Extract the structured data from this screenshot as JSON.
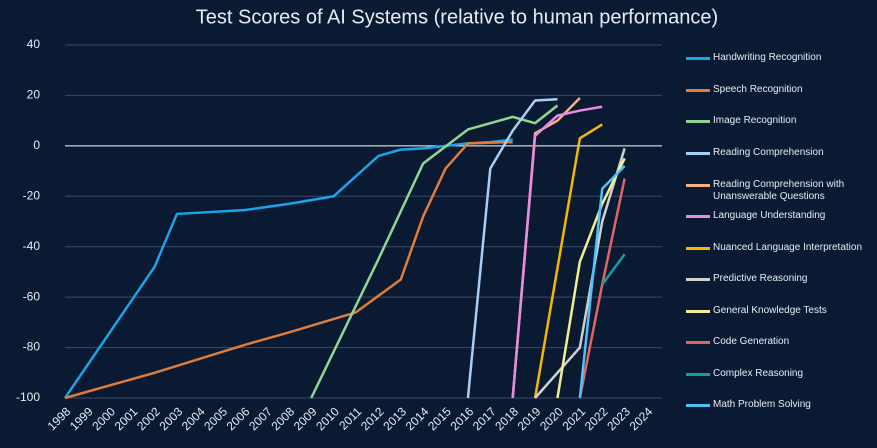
{
  "chart_data": {
    "type": "line",
    "title": "Test Scores of AI Systems (relative to human performance)",
    "xlim": [
      1998,
      2024
    ],
    "xticks": [
      1998,
      1999,
      2000,
      2001,
      2002,
      2003,
      2004,
      2005,
      2006,
      2007,
      2008,
      2009,
      2010,
      2011,
      2012,
      2013,
      2014,
      2015,
      2016,
      2017,
      2018,
      2019,
      2020,
      2021,
      2022,
      2023,
      2024
    ],
    "ylim": [
      -100,
      40
    ],
    "yticks": [
      -100,
      -80,
      -60,
      -40,
      -20,
      0,
      20,
      40
    ],
    "grid": true,
    "series": [
      {
        "name": "Handwriting Recognition",
        "color": "#1aa3e8",
        "x": [
          1998,
          2002,
          2003,
          2006,
          2008,
          2010,
          2012,
          2013,
          2014,
          2015,
          2016,
          2017,
          2018
        ],
        "values": [
          -100,
          -48,
          -27,
          -25.5,
          -23,
          -20,
          -4,
          -1.5,
          -1,
          0,
          1,
          1.5,
          2.5
        ]
      },
      {
        "name": "Speech Recognition",
        "color": "#e07b39",
        "x": [
          1998,
          2002,
          2006,
          2008,
          2011,
          2013,
          2014,
          2015,
          2016,
          2018
        ],
        "values": [
          -100,
          -90,
          -79,
          -74,
          -66,
          -53,
          -28,
          -9,
          1,
          1.5
        ]
      },
      {
        "name": "Image Recognition",
        "color": "#8fd694",
        "x": [
          2009,
          2012,
          2014,
          2016,
          2018,
          2019,
          2020
        ],
        "values": [
          -100,
          -45,
          -7,
          6.5,
          11.5,
          9,
          16
        ]
      },
      {
        "name": "Reading Comprehension",
        "color": "#a9cff5",
        "x": [
          2016,
          2017,
          2018,
          2019,
          2020
        ],
        "values": [
          -100,
          -9,
          6,
          18,
          18.5
        ]
      },
      {
        "name": "Reading Comprehension with Unanswerable Questions",
        "color": "#f4b183",
        "x": [
          2018,
          2019,
          2020,
          2021
        ],
        "values": [
          -100,
          5,
          10,
          19
        ]
      },
      {
        "name": "Language Understanding",
        "color": "#e58de0",
        "x": [
          2018,
          2019,
          2020,
          2021,
          2022
        ],
        "values": [
          -100,
          4,
          12,
          14,
          15.5
        ]
      },
      {
        "name": "Nuanced Language Interpretation",
        "color": "#f5b800",
        "x": [
          2019,
          2021,
          2022
        ],
        "values": [
          -100,
          3,
          8.5
        ]
      },
      {
        "name": "Predictive Reasoning",
        "color": "#d0d0d0",
        "x": [
          2019,
          2021,
          2022,
          2023
        ],
        "values": [
          -100,
          -80,
          -30,
          -1
        ]
      },
      {
        "name": "General Knowledge Tests",
        "color": "#f0f090",
        "x": [
          2020,
          2021,
          2022,
          2023
        ],
        "values": [
          -100,
          -46,
          -23,
          -5
        ]
      },
      {
        "name": "Code Generation",
        "color": "#e06666",
        "x": [
          2021,
          2022,
          2023
        ],
        "values": [
          -100,
          -55,
          -13
        ]
      },
      {
        "name": "Complex Reasoning",
        "color": "#1a9c9c",
        "x": [
          2022,
          2023
        ],
        "values": [
          -55,
          -43
        ]
      },
      {
        "name": "Math Problem Solving",
        "color": "#4fc3f7",
        "x": [
          2021,
          2022,
          2023
        ],
        "values": [
          -100,
          -17,
          -8
        ]
      }
    ]
  }
}
